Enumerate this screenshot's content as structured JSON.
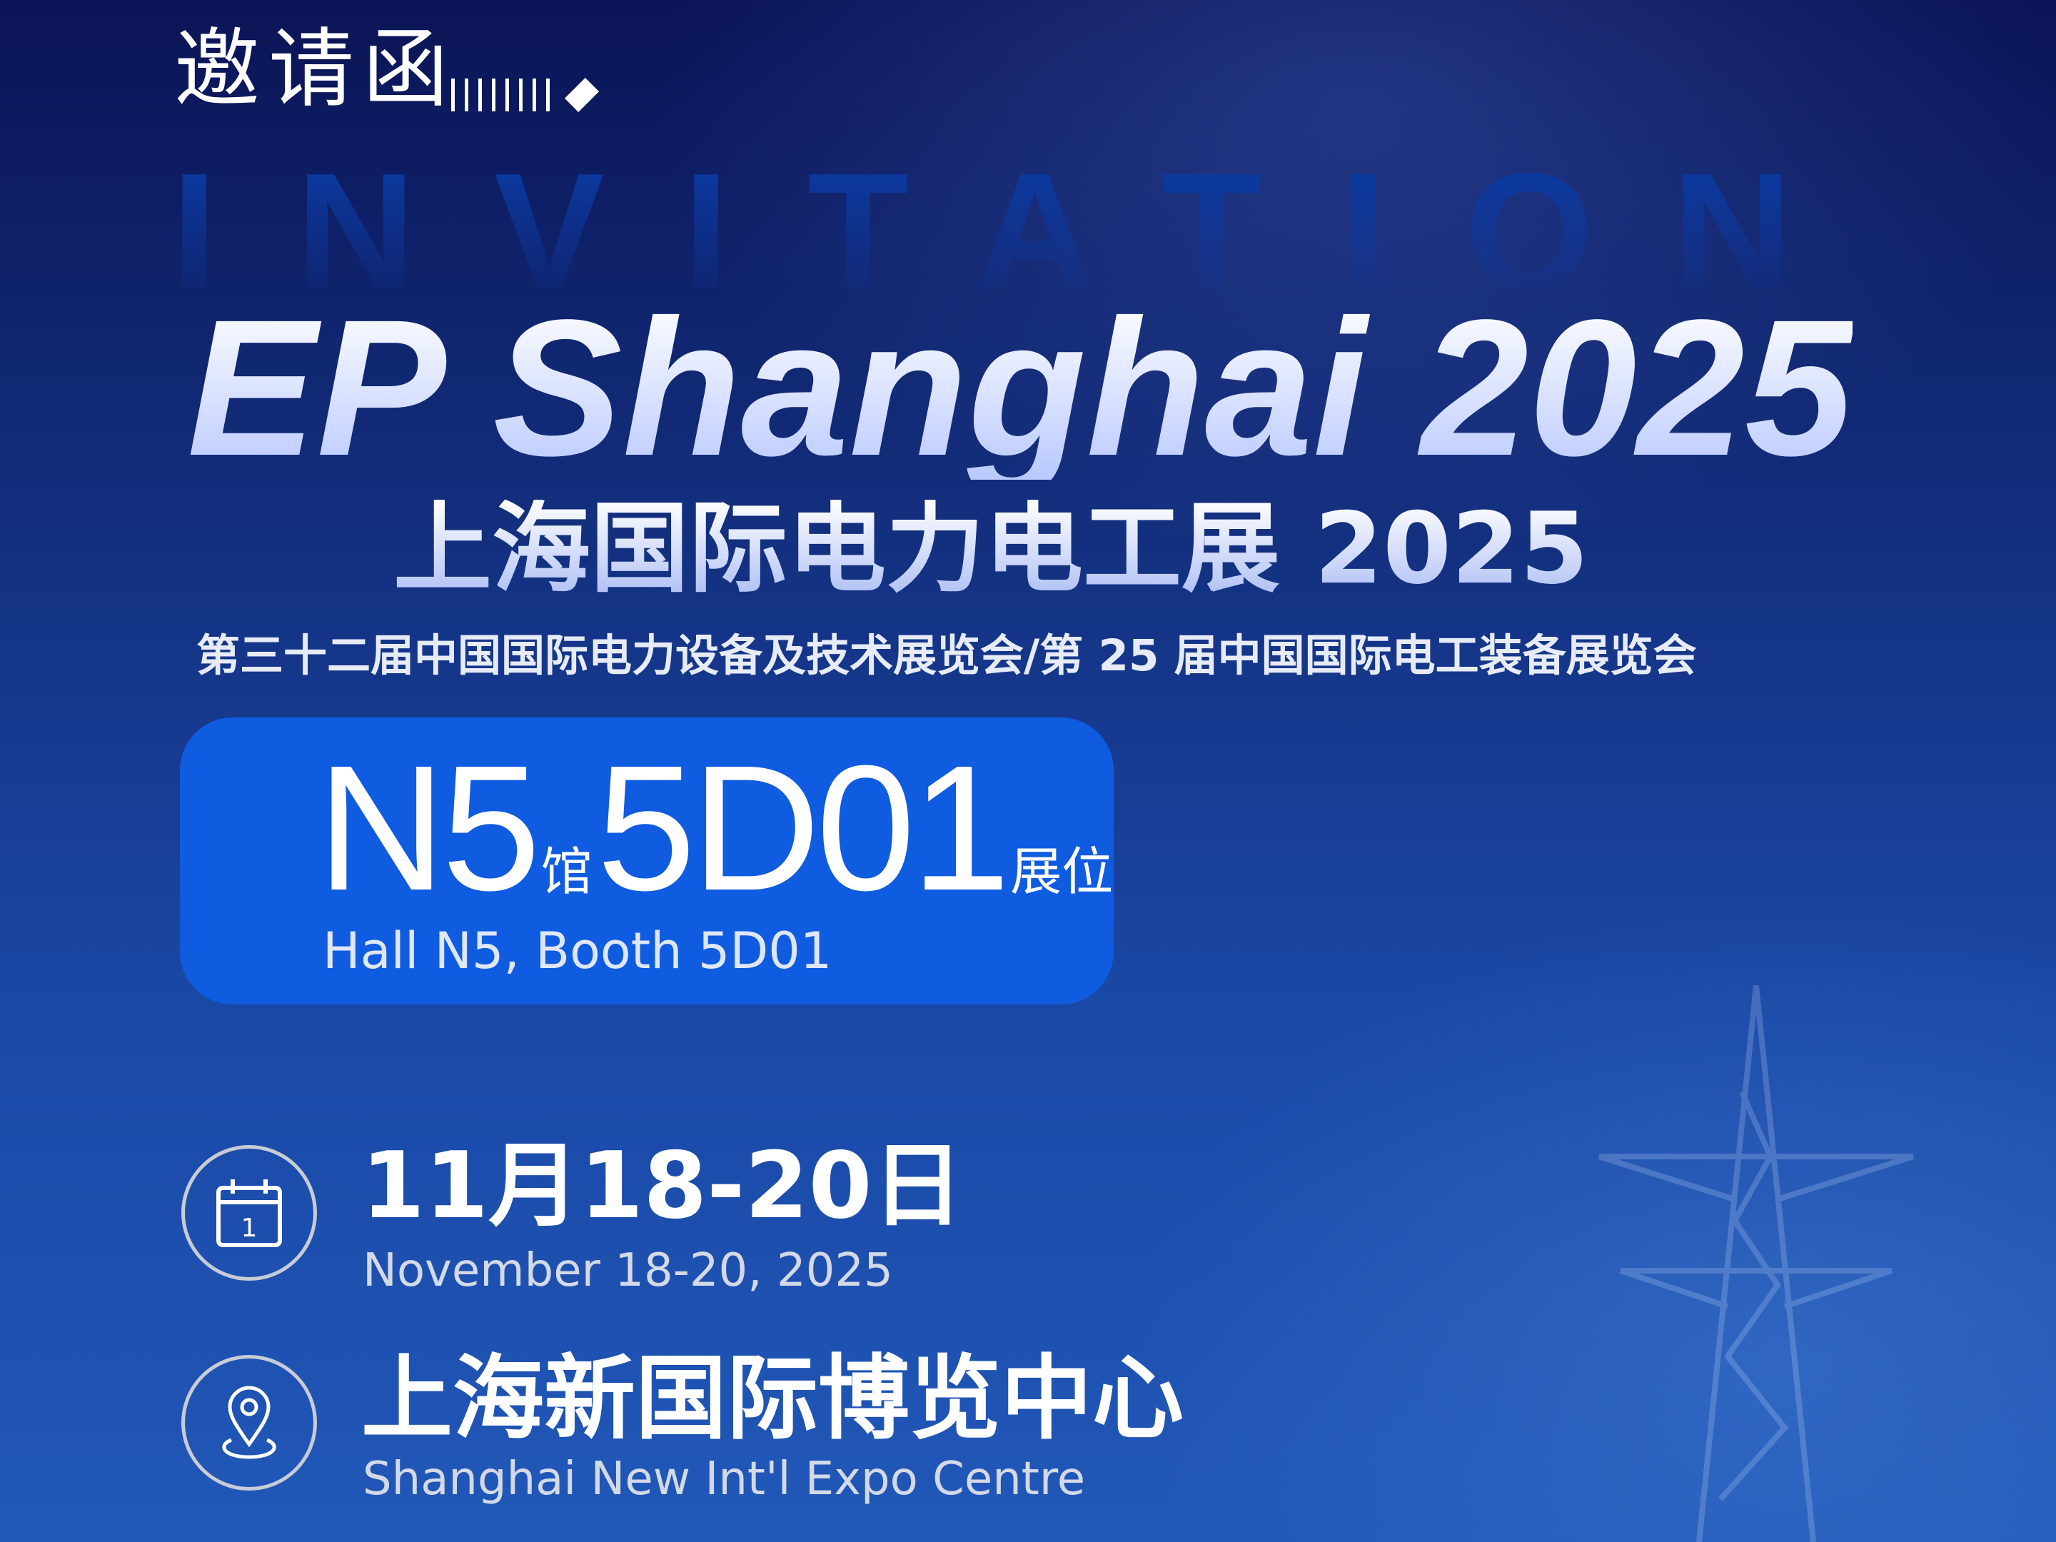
{
  "header": {
    "invitation_cn": "邀请函",
    "watermark": "INVITATION"
  },
  "event": {
    "title_en": "EP Shanghai 2025",
    "title_cn": "上海国际电力电工展 2025",
    "subtitle_cn": "第三十二届中国国际电力设备及技术展览会/第 25 届中国国际电工装备展览会"
  },
  "booth": {
    "hall": "N5",
    "hall_unit": "馆",
    "booth_no": "5D01",
    "booth_unit": "展位",
    "en": "Hall N5, Booth 5D01",
    "color": "#0f5ce0"
  },
  "date": {
    "icon": "calendar-icon",
    "icon_day": "1",
    "cn": "11月18-20日",
    "en": "November 18-20, 2025"
  },
  "venue": {
    "icon": "location-pin-icon",
    "cn": "上海新国际博览中心",
    "en": "Shanghai New Int'l Expo Centre"
  }
}
